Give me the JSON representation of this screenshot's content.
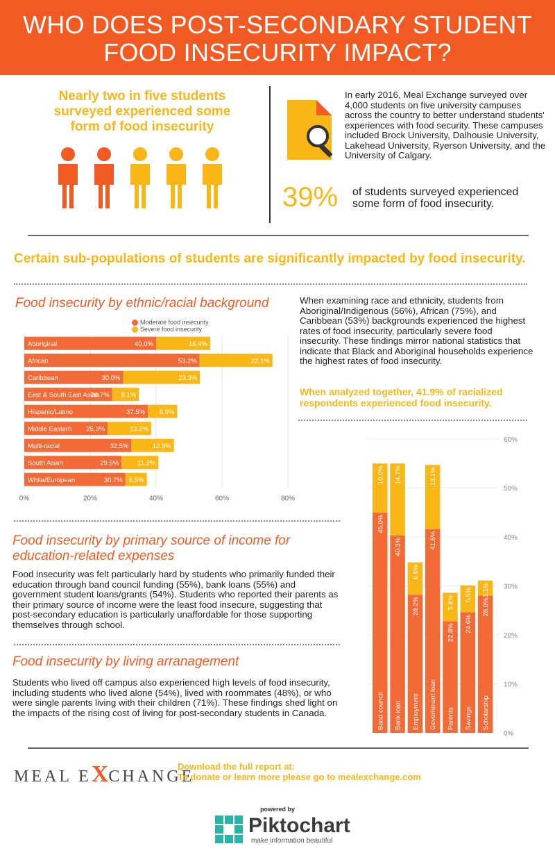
{
  "header": {
    "title_line1": "WHO DOES POST-SECONDARY STUDENT",
    "title_line2": "FOOD INSECURITY IMPACT?"
  },
  "lead_text": "Nearly two in five students surveyed experienced some form of food insecurity",
  "intro_text": "In early 2016, Meal Exchange surveyed over 4,000 students on five university campuses across the country to better understand students' experiences with food security. These campuses included Brock University, Dalhousie University, Lakehead University, Ryerson University, and the University of Calgary.",
  "stat": {
    "value": "39%",
    "text": "of students surveyed experienced some form of food insecurity."
  },
  "subpop_heading": "Certain sub-populations of students are significantly impacted by food insecurity.",
  "colors": {
    "orange": "#f15a22",
    "bar_orange": "#f26a36",
    "yellow": "#f8b716"
  },
  "ethnic_section": {
    "title": "Food insecurity by ethnic/racial background",
    "text": "When examining race and ethnicity, students from Aboriginal/Indigenous (56%), African (75%), and Caribbean (53%) backgrounds experienced the highest rates of food insecurity, particularly severe food insecurity. These findings mirror national statistics that indicate that Black and Aboriginal households experience the highest rates of food insecurity.",
    "note": "When analyzed together, 41.9% of racialized respondents experienced food insecurity."
  },
  "income_section": {
    "title_line1": "Food insecurity by primary source of income for",
    "title_line2": "education-related expenses",
    "text": "Food insecurity was felt particularly hard by students who primarily funded their education through band council funding (55%), bank loans (55%) and government student loans/grants (54%). Students who reported their parents as their primary source of income were the least food insecure, suggesting that post-secondary education is particularly unaffordable for those supporting themselves through school."
  },
  "living_section": {
    "title": "Food insecurity by living arranagement",
    "text": "Students who lived off campus also experienced high levels of food insecurity, including students who lived alone (54%), lived with roommates (48%), or who were single parents living with their children (71%). These findings shed light on the impacts of the rising cost of living for post-secondary students in Canada."
  },
  "footer": {
    "logo_left": "MEAL E",
    "logo_x": "X",
    "logo_right": "CHANGE",
    "cta_line1": "Download the full report at:",
    "cta_line2": "To donate or learn more please go to mealexchange.com",
    "powered_by": "powered by",
    "brand": "Piktochart",
    "tagline": "make information beautiful"
  },
  "chart_data": [
    {
      "type": "bar",
      "orientation": "horizontal",
      "stacked": true,
      "categories": [
        "Aboriginal",
        "African",
        "Caribbean",
        "East & South East Asian",
        "Hispanic/Latino",
        "Middle Eastern",
        "Multi-racial",
        "South Asian",
        "White/European"
      ],
      "series": [
        {
          "name": "Moderate food insecurity",
          "values": [
            40.0,
            53.2,
            30.0,
            26.7,
            37.5,
            25.3,
            32.5,
            29.5,
            30.7
          ],
          "labels": [
            "40.0%",
            "53.2%",
            "30.0%",
            "26.7%",
            "37.5%",
            "25.3%",
            "32.5%",
            "29.5%",
            "30.7%"
          ]
        },
        {
          "name": "Severe food insecurity",
          "values": [
            16.4,
            22.1,
            23.3,
            8.1,
            8.9,
            13.2,
            12.9,
            11.2,
            6.5
          ],
          "labels": [
            "16.4%",
            "22.1%",
            "23.3%",
            "8.1%",
            "8.9%",
            "13.2%",
            "12.9%",
            "11.2%",
            "6.5%"
          ]
        }
      ],
      "xlim": [
        0,
        80
      ],
      "xticks": [
        "0%",
        "20%",
        "40%",
        "60%",
        "80%"
      ],
      "legend": "top-right",
      "grid": true
    },
    {
      "type": "bar",
      "orientation": "vertical",
      "stacked": true,
      "categories": [
        "Band council",
        "Bank loan",
        "Employment",
        "Government loan",
        "Parents",
        "Savings",
        "Scholarship"
      ],
      "series": [
        {
          "values": [
            45.0,
            40.3,
            28.2,
            41.6,
            22.8,
            24.6,
            28.0
          ],
          "labels": [
            "45.0%",
            "40.3%",
            "28.2%",
            "41.6%",
            "22.8%",
            "24.6%",
            "28.0%"
          ]
        },
        {
          "values": [
            10.0,
            14.7,
            6.6,
            13.1,
            5.8,
            5.5,
            3.1
          ],
          "labels": [
            "10.0%",
            "14.7%",
            "6.6%",
            "13.1%",
            "5.8%",
            "5.5%",
            "3.1%"
          ]
        }
      ],
      "ylim": [
        0,
        60
      ],
      "yticks": [
        "0%",
        "10%",
        "20%",
        "30%",
        "40%",
        "50%",
        "60%"
      ],
      "grid": true
    }
  ]
}
